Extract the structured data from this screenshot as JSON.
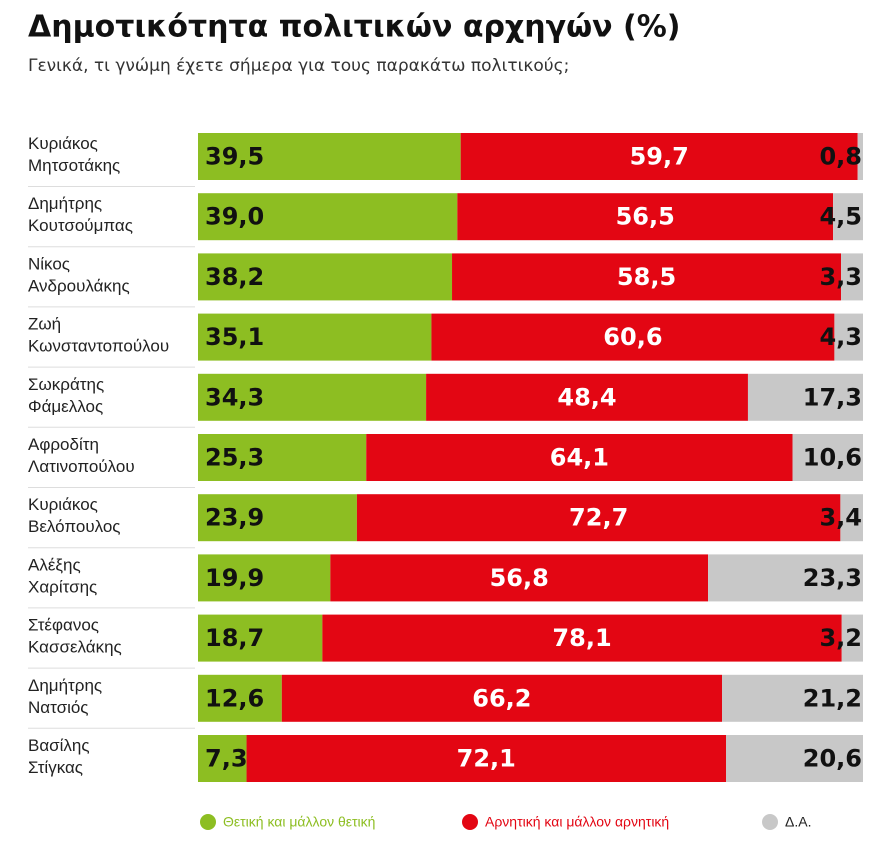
{
  "chart_data": {
    "type": "stacked-bar-horizontal",
    "title": "Δημοτικότητα πολιτικών αρχηγών (%)",
    "subtitle": "Γενικά, τι γνώμη έχετε σήμερα για τους παρακάτω πολιτικούς;",
    "categories": [
      "Κυριάκος Μητσοτάκης",
      "Δημήτρης Κουτσούμπας",
      "Νίκος Ανδρουλάκης",
      "Ζωή Κωνσταντοπούλου",
      "Σωκράτης Φάμελλος",
      "Αφροδίτη Λατινοπούλου",
      "Κυριάκος Βελόπουλος",
      "Αλέξης Χαρίτσης",
      "Στέφανος Κασσελάκης",
      "Δημήτρης Νατσιός",
      "Βασίλης Στίγκας"
    ],
    "xlim": [
      0,
      100
    ],
    "series": [
      {
        "name": "Θετική και μάλλον θετική",
        "color": "#8dbe22",
        "values": [
          39.5,
          39.0,
          38.2,
          35.1,
          34.3,
          25.3,
          23.9,
          19.9,
          18.7,
          12.6,
          7.3
        ],
        "value_labels": [
          "39,5",
          "39,0",
          "38,2",
          "35,1",
          "34,3",
          "25,3",
          "23,9",
          "19,9",
          "18,7",
          "12,6",
          "7,3"
        ]
      },
      {
        "name": "Αρνητική και μάλλον αρνητική",
        "color": "#e30613",
        "values": [
          59.7,
          56.5,
          58.5,
          60.6,
          48.4,
          64.1,
          72.7,
          56.8,
          78.1,
          66.2,
          72.1
        ],
        "value_labels": [
          "59,7",
          "56,5",
          "58,5",
          "60,6",
          "48,4",
          "64,1",
          "72,7",
          "56,8",
          "78,1",
          "66,2",
          "72,1"
        ]
      },
      {
        "name": "Δ.Α.",
        "color": "#c8c8c8",
        "values": [
          0.8,
          4.5,
          3.3,
          4.3,
          17.3,
          10.6,
          3.4,
          23.3,
          3.2,
          21.2,
          20.6
        ],
        "value_labels": [
          "0,8",
          "4,5",
          "3,3",
          "4,3",
          "17,3",
          "10,6",
          "3,4",
          "23,3",
          "3,2",
          "21,2",
          "20,6"
        ]
      }
    ]
  }
}
